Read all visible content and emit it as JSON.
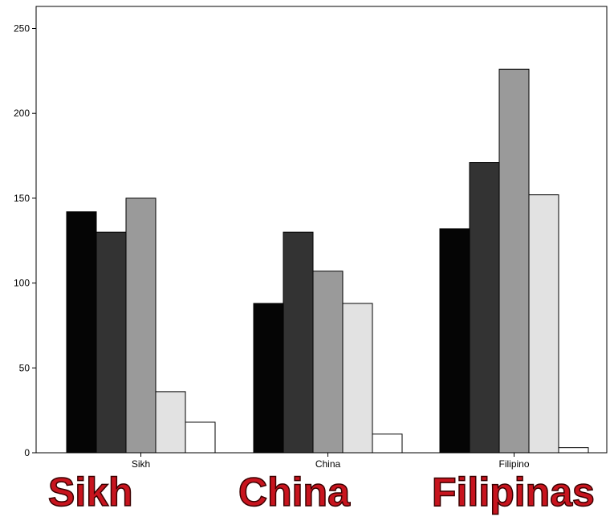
{
  "chart_data": {
    "type": "bar",
    "categories": [
      "Sikh",
      "China",
      "Filipino"
    ],
    "series": [
      {
        "values": [
          142,
          88,
          132
        ],
        "color": "#050505"
      },
      {
        "values": [
          130,
          130,
          171
        ],
        "color": "#333333"
      },
      {
        "values": [
          150,
          107,
          226
        ],
        "color": "#9a9a9a"
      },
      {
        "values": [
          36,
          88,
          152
        ],
        "color": "#e2e2e2"
      },
      {
        "values": [
          18,
          11,
          3
        ],
        "color": "#ffffff"
      }
    ],
    "yticks": [
      0,
      50,
      100,
      150,
      200,
      250
    ],
    "ylim": [
      0,
      260
    ],
    "grid": false,
    "legend": "none"
  },
  "annotations": {
    "big_labels": [
      "Sikh",
      "China",
      "Filipinas"
    ],
    "text_color": "#c8141e"
  }
}
